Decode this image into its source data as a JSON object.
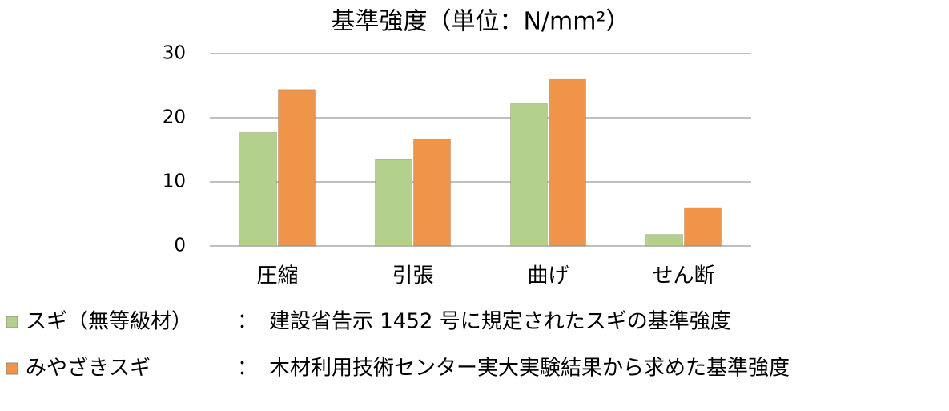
{
  "chart_data": {
    "type": "bar",
    "title": "基準強度（単位：N/mm²）",
    "categories": [
      "圧縮",
      "引張",
      "曲げ",
      "せん断"
    ],
    "series": [
      {
        "name": "スギ（無等級材）",
        "color": "#b3d18c",
        "values": [
          17.7,
          13.5,
          22.2,
          1.8
        ]
      },
      {
        "name": "みやざきスギ",
        "color": "#f0944a",
        "values": [
          24.4,
          16.6,
          26.1,
          6.0
        ]
      }
    ],
    "legend_separator": "：",
    "legend_notes": [
      "建設省告示 1452 号に規定されたスギの基準強度",
      "木材利用技術センター実大実験結果から求めた基準強度"
    ],
    "ylim": [
      0,
      30
    ],
    "yticks": [
      0,
      10,
      20,
      30
    ],
    "grid": true,
    "legend": "bottom"
  }
}
